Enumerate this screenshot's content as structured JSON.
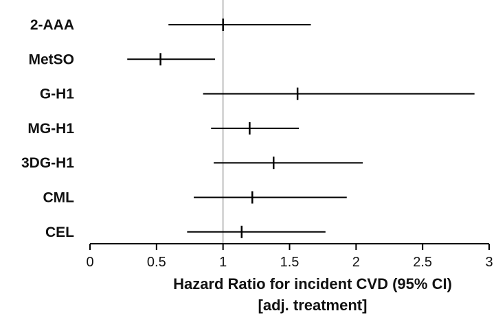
{
  "chart_data": {
    "type": "forest",
    "categories": [
      "2-AAA",
      "MetSO",
      "G-H1",
      "MG-H1",
      "3DG-H1",
      "CML",
      "CEL"
    ],
    "estimates": [
      1.0,
      0.53,
      1.56,
      1.2,
      1.38,
      1.22,
      1.14
    ],
    "ci_lower": [
      0.59,
      0.28,
      0.85,
      0.91,
      0.93,
      0.78,
      0.73
    ],
    "ci_upper": [
      1.66,
      0.94,
      2.89,
      1.57,
      2.05,
      1.93,
      1.77
    ],
    "reference_line": 1,
    "xlim": [
      0,
      3
    ],
    "xticks": [
      0,
      0.5,
      1,
      1.5,
      2,
      2.5,
      3
    ],
    "xtick_labels": [
      "0",
      "0.5",
      "1",
      "1.5",
      "2",
      "2.5",
      "3"
    ],
    "xlabel_line1": "Hazard Ratio for incident CVD (95% CI)",
    "xlabel_line2": "[adj. treatment]",
    "colors": {
      "marks": "#000000",
      "reference": "#888888"
    }
  }
}
